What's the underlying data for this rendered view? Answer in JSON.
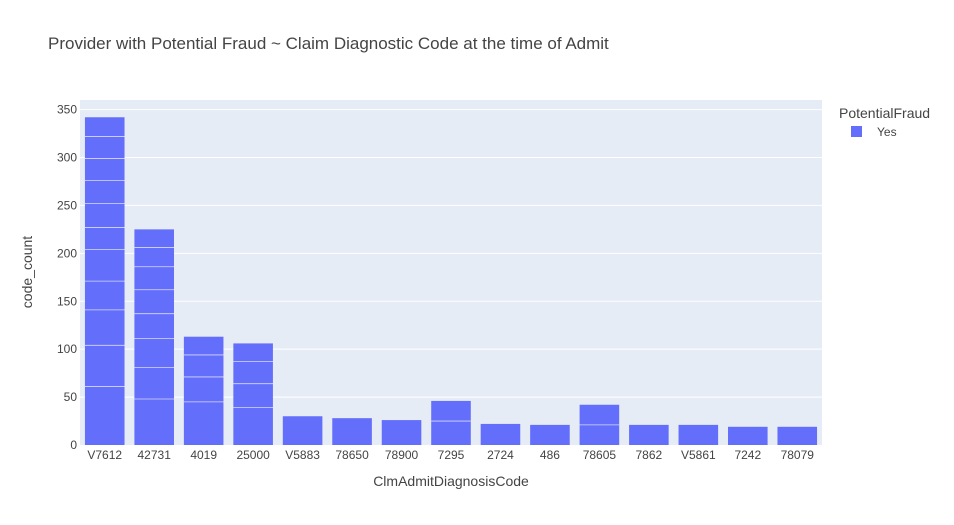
{
  "chart_data": {
    "type": "bar",
    "title": "Provider with Potential Fraud ~ Claim Diagnostic Code at the time of Admit",
    "xlabel": "ClmAdmitDiagnosisCode",
    "ylabel": "code_count",
    "ylim": [
      0,
      360
    ],
    "yticks": [
      0,
      50,
      100,
      150,
      200,
      250,
      300,
      350
    ],
    "grid": true,
    "legend": {
      "title": "PotentialFraud",
      "position": "top-right"
    },
    "categories": [
      "V7612",
      "42731",
      "4019",
      "25000",
      "V5883",
      "78650",
      "78900",
      "7295",
      "2724",
      "486",
      "78605",
      "7862",
      "V5861",
      "7242",
      "78079"
    ],
    "series": [
      {
        "name": "Yes",
        "color": "#636efa",
        "values": [
          342,
          225,
          113,
          106,
          30,
          28,
          26,
          46,
          22,
          21,
          42,
          21,
          21,
          19,
          19
        ],
        "segment_boundaries": [
          [
            61,
            104,
            141,
            171,
            204,
            227,
            252,
            276,
            299,
            322
          ],
          [
            48,
            81,
            111,
            137,
            162,
            186,
            206
          ],
          [
            45,
            71,
            94
          ],
          [
            39,
            64,
            87
          ],
          [],
          [],
          [],
          [
            25
          ],
          [],
          [],
          [
            21
          ],
          [],
          [],
          [],
          []
        ]
      }
    ]
  },
  "colors": {
    "plot_bg": "#e5ecf6",
    "grid": "#ffffff",
    "bar": "#636efa",
    "text": "#444444"
  }
}
